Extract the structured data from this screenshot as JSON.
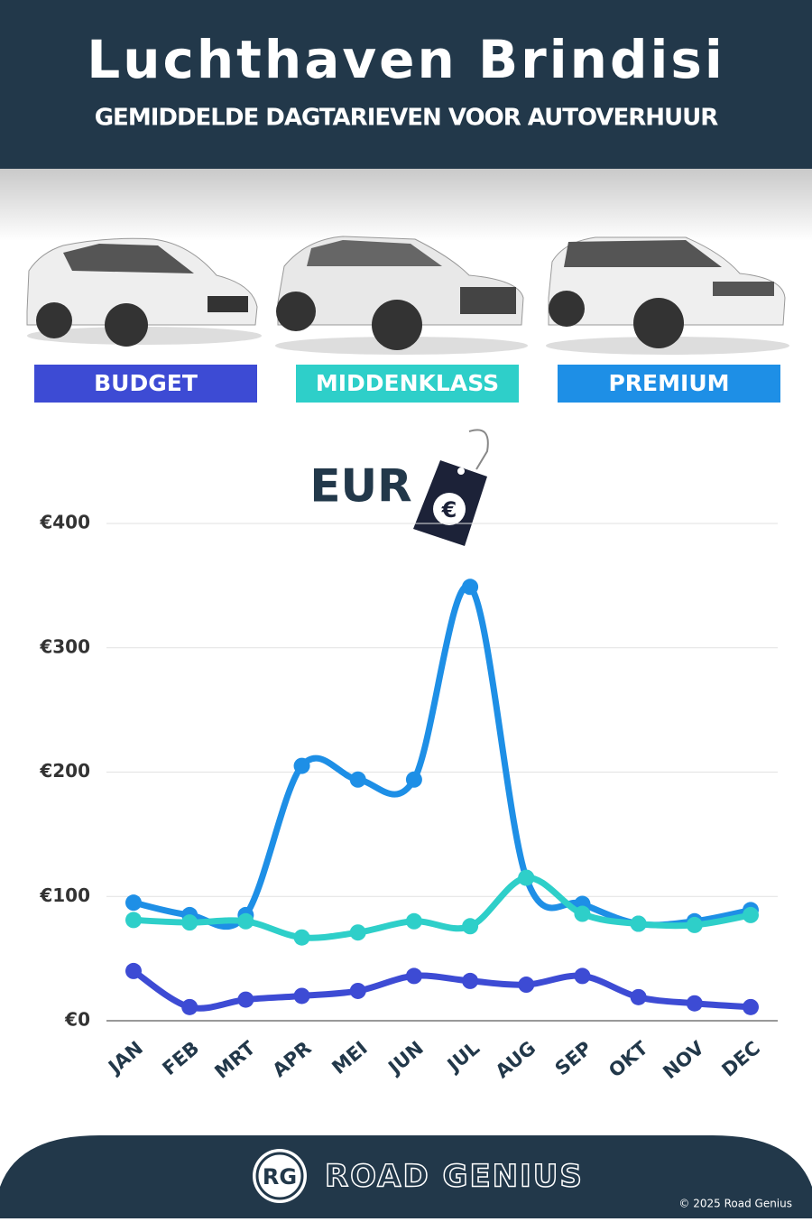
{
  "header": {
    "title": "Luchthaven Brindisi",
    "subtitle": "GEMIDDELDE DAGTARIEVEN VOOR AUTOVERHUUR"
  },
  "chart_data": {
    "type": "line",
    "y_label": "EUR",
    "currency_symbol": "€",
    "categories": [
      "JAN",
      "FEB",
      "MRT",
      "APR",
      "MEI",
      "JUN",
      "JUL",
      "AUG",
      "SEP",
      "OKT",
      "NOV",
      "DEC"
    ],
    "series": [
      {
        "name": "BUDGET",
        "color": "#3d4bd4",
        "values": [
          40,
          11,
          17,
          20,
          24,
          36,
          32,
          29,
          36,
          19,
          14,
          11
        ]
      },
      {
        "name": "MIDDENKLASS",
        "color": "#2ecfc9",
        "values": [
          81,
          79,
          80,
          67,
          71,
          80,
          76,
          115,
          86,
          78,
          77,
          85
        ]
      },
      {
        "name": "PREMIUM",
        "color": "#1e8fe6",
        "values": [
          95,
          85,
          85,
          205,
          194,
          194,
          349,
          115,
          94,
          78,
          80,
          89
        ]
      }
    ],
    "ylim": [
      0,
      400
    ],
    "yticks": [
      {
        "value": 0,
        "label": "€0"
      },
      {
        "value": 100,
        "label": "€100"
      },
      {
        "value": 200,
        "label": "€200"
      },
      {
        "value": 300,
        "label": "€300"
      },
      {
        "value": 400,
        "label": "€400"
      }
    ],
    "grid": true
  },
  "footer": {
    "logo": "RG",
    "brand": "ROAD GENIUS",
    "copyright": "© 2025 Road Genius"
  }
}
